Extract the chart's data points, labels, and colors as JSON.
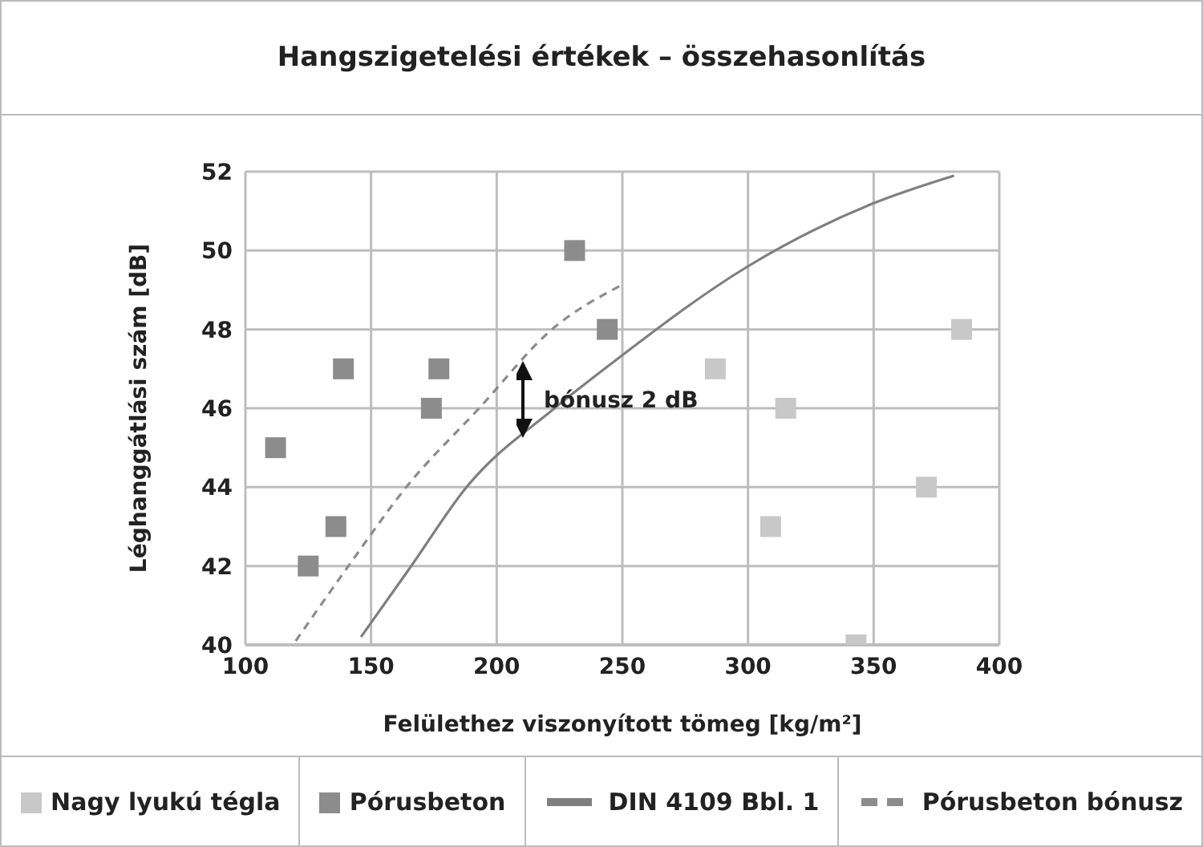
{
  "chart_data": {
    "type": "scatter",
    "title": "Hangszigetelési értékek – összehasonlítás",
    "xlabel": "Felülethez viszonyított tömeg [kg/m²]",
    "ylabel": "Léghanggátlási szám [dB]",
    "xlim": [
      100,
      400
    ],
    "xticks": [
      100,
      150,
      200,
      250,
      300,
      350,
      400
    ],
    "ylim": [
      40,
      52
    ],
    "yticks": [
      40,
      42,
      44,
      46,
      48,
      50,
      52
    ],
    "grid": true,
    "legend": "bottom",
    "series": [
      {
        "name": "Nagy lyukú tégla",
        "marker": "square",
        "color": "#c8c8c8",
        "x": [
          287,
          315,
          309,
          343,
          371,
          385
        ],
        "values": [
          47,
          46,
          43,
          40,
          44,
          48
        ]
      },
      {
        "name": "Pórusbeton",
        "marker": "square",
        "color": "#8c8c8c",
        "x": [
          112,
          139,
          136,
          125,
          177,
          174,
          231,
          244
        ],
        "values": [
          45,
          47,
          43,
          42,
          47,
          46,
          50,
          48
        ]
      },
      {
        "name": "DIN 4109 Bbl. 1",
        "type": "line",
        "marker": "none",
        "line_style": "solid",
        "color": "#7f7f7f",
        "x": [
          146,
          166,
          188,
          223,
          247,
          300,
          350,
          382
        ],
        "values": [
          40.2,
          42,
          44,
          46,
          47.2,
          49.6,
          51.2,
          51.9
        ]
      },
      {
        "name": "Pórusbeton bónusz",
        "type": "line",
        "marker": "none",
        "line_style": "dashed",
        "color": "#8c8c8c",
        "x": [
          120,
          141,
          164,
          193,
          222,
          249
        ],
        "values": [
          40.1,
          42,
          44,
          46,
          48,
          49.1
        ]
      }
    ],
    "annotations": [
      "bónusz 2 dB"
    ]
  }
}
